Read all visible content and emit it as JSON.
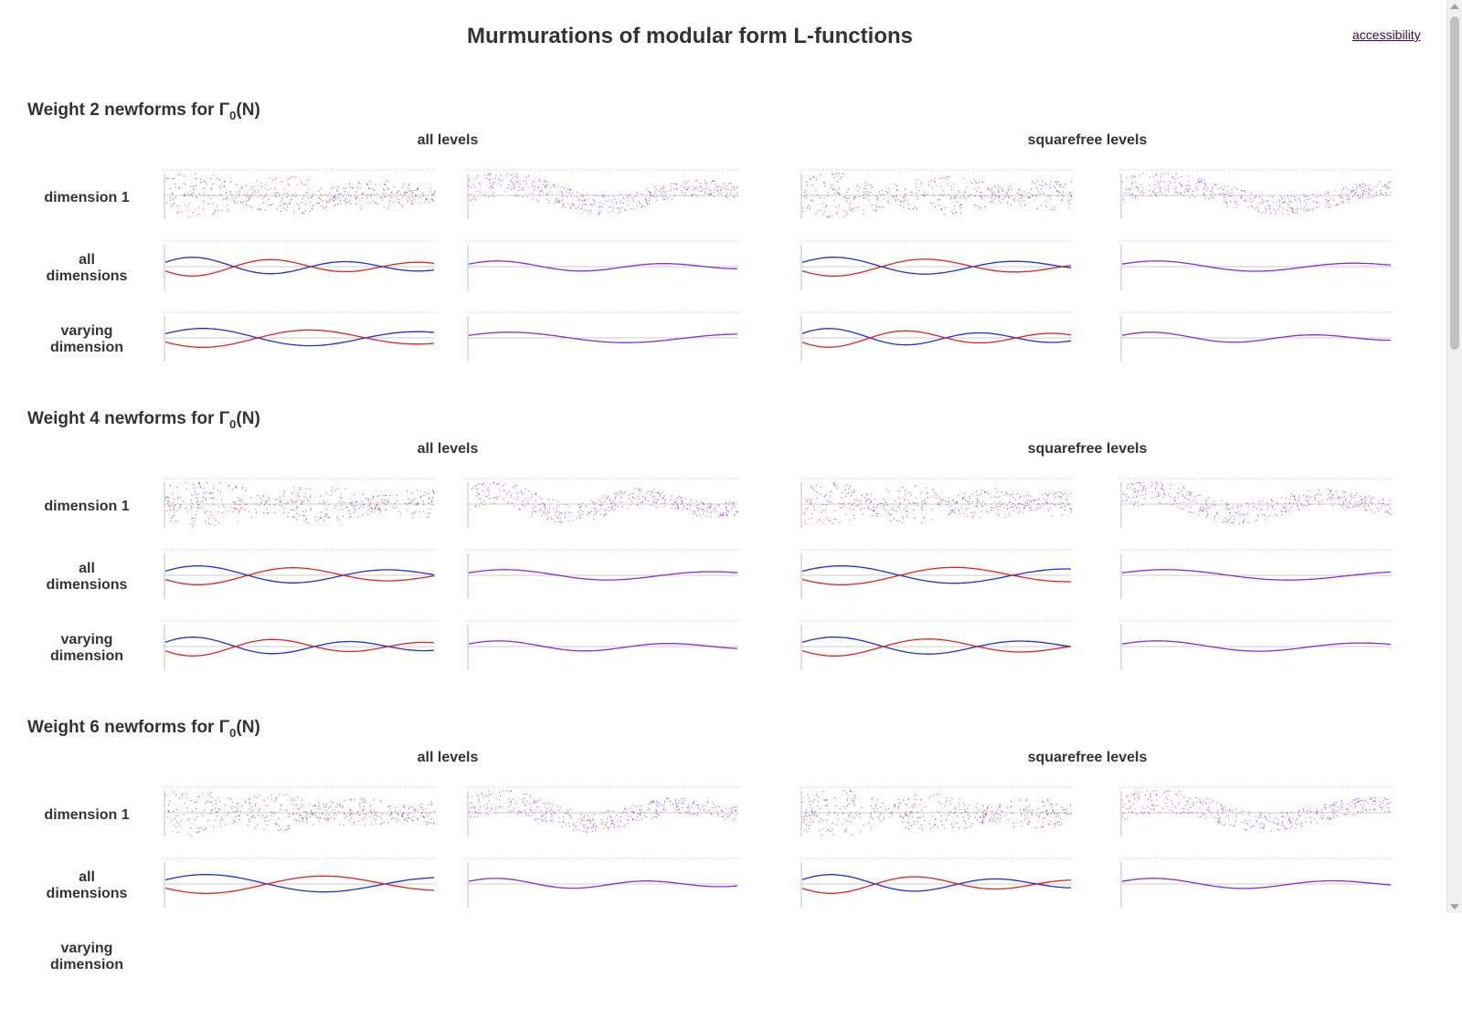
{
  "page": {
    "title": "Murmurations of modular form L-functions",
    "accessibility_link": "accessibility"
  },
  "groups": {
    "all": "all levels",
    "squarefree": "squarefree levels"
  },
  "rows": {
    "dim1": "dimension 1",
    "alldim_line1": "all",
    "alldim_line2": "dimensions",
    "vary_line1": "varying",
    "vary_line2": "dimension"
  },
  "sections": [
    {
      "prefix": "Weight 2 newforms for Γ",
      "sub": "0",
      "suffix": "(N)"
    },
    {
      "prefix": "Weight 4 newforms for Γ",
      "sub": "0",
      "suffix": "(N)"
    },
    {
      "prefix": "Weight 6 newforms for Γ",
      "sub": "0",
      "suffix": "(N)"
    }
  ],
  "colors": {
    "positive_series": "#1f2fd6",
    "negative_series": "#e02424",
    "overlay_series": "#8a2be2",
    "axis": "#999999"
  },
  "icons": {
    "scroll_up": "triangle-up-icon",
    "scroll_down": "triangle-down-icon"
  }
}
